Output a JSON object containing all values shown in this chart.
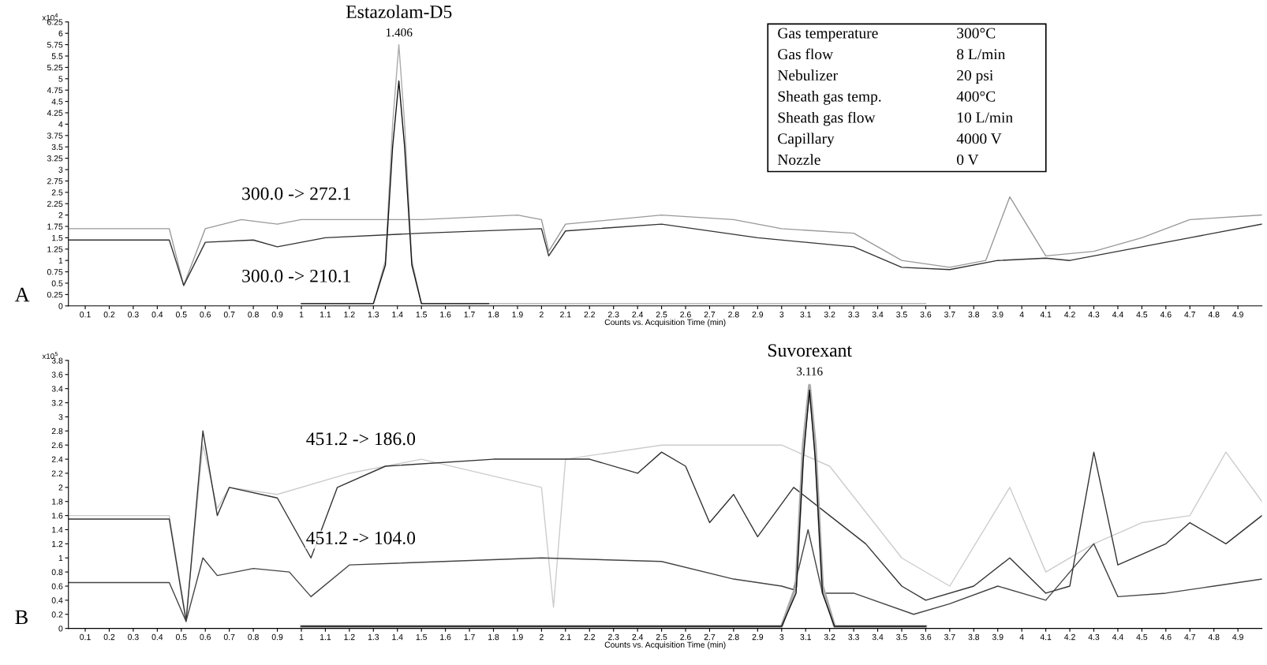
{
  "chart_data": [
    {
      "type": "line",
      "xlabel": "Counts vs. Acquisition Time (min)",
      "ylabel": "x10$^{4}$",
      "xlim": [
        0.03,
        5
      ],
      "ylim": [
        0,
        6.25
      ],
      "xticks": [
        0.1,
        0.2,
        0.3,
        0.4,
        0.5,
        0.6,
        0.7,
        0.8,
        0.9,
        1,
        1.1,
        1.2,
        1.3,
        1.4,
        1.5,
        1.6,
        1.7,
        1.8,
        1.9,
        2,
        2.1,
        2.2,
        2.3,
        2.4,
        2.5,
        2.6,
        2.7,
        2.8,
        2.9,
        3,
        3.1,
        3.2,
        3.3,
        3.4,
        3.5,
        3.6,
        3.7,
        3.8,
        3.9,
        4,
        4.1,
        4.2,
        4.3,
        4.4,
        4.5,
        4.6,
        4.7,
        4.8,
        4.9
      ],
      "yticks": [
        0,
        0.25,
        0.5,
        0.75,
        1,
        1.25,
        1.5,
        1.75,
        2,
        2.25,
        2.5,
        2.75,
        3,
        3.25,
        3.5,
        3.75,
        4,
        4.25,
        4.5,
        4.75,
        5,
        5.25,
        5.5,
        5.75,
        6,
        6.25
      ],
      "grid": false,
      "marker": "none",
      "line_style": "solid",
      "series": [
        {
          "color": "#999999",
          "x": [
            0.03,
            0.45,
            0.51,
            0.6,
            0.75,
            0.9,
            1.0,
            1.5,
            1.9,
            2.0,
            2.03,
            2.1,
            2.5,
            2.8,
            3.0,
            3.3,
            3.5,
            3.7,
            3.85,
            3.95,
            4.1,
            4.3,
            4.5,
            4.7,
            5.0
          ],
          "values": [
            1.7,
            1.7,
            0.45,
            1.7,
            1.9,
            1.8,
            1.9,
            1.9,
            2.0,
            1.9,
            1.2,
            1.8,
            2.0,
            1.9,
            1.7,
            1.6,
            1.0,
            0.85,
            1.0,
            2.4,
            1.1,
            1.2,
            1.5,
            1.9,
            2.0
          ]
        },
        {
          "color": "#333333",
          "x": [
            0.03,
            0.45,
            0.51,
            0.6,
            0.8,
            0.9,
            1.1,
            1.5,
            2.0,
            2.03,
            2.1,
            2.5,
            2.9,
            3.1,
            3.3,
            3.5,
            3.7,
            3.9,
            4.1,
            4.2,
            4.5,
            4.7,
            5.0
          ],
          "values": [
            1.45,
            1.45,
            0.45,
            1.4,
            1.45,
            1.3,
            1.5,
            1.6,
            1.7,
            1.1,
            1.65,
            1.8,
            1.5,
            1.4,
            1.3,
            0.85,
            0.8,
            1.0,
            1.05,
            1.0,
            1.3,
            1.5,
            1.8
          ]
        },
        {
          "color": "#aaaaaa",
          "x": [
            1.0,
            1.3,
            1.35,
            1.38,
            1.406,
            1.43,
            1.46,
            1.5,
            3.6
          ],
          "values": [
            0.05,
            0.05,
            1.0,
            4.0,
            5.75,
            4.0,
            1.0,
            0.05,
            0.05
          ]
        },
        {
          "color": "#111111",
          "x": [
            1.0,
            1.3,
            1.35,
            1.38,
            1.406,
            1.43,
            1.46,
            1.5,
            1.78
          ],
          "values": [
            0.05,
            0.05,
            0.9,
            3.5,
            4.95,
            3.5,
            0.9,
            0.05,
            0.05
          ]
        }
      ],
      "annotations": [
        "Estazolam-D5",
        "1.406",
        "300.0 -> 272.1",
        "300.0 -> 210.1",
        "A",
        "Gas temperature",
        "300°C",
        "Gas flow",
        "8 L/min",
        "Nebulizer",
        "20 psi",
        "Sheath gas temp.",
        "400°C",
        "Sheath gas flow",
        "10 L/min",
        "Capillary",
        "4000 V",
        "Nozzle",
        "0 V"
      ]
    },
    {
      "type": "line",
      "xlabel": "Counts vs. Acquisition Time (min)",
      "ylabel": "x10$^{5}$",
      "xlim": [
        0.03,
        5
      ],
      "ylim": [
        0,
        3.8
      ],
      "xticks": [
        0.1,
        0.2,
        0.3,
        0.4,
        0.5,
        0.6,
        0.7,
        0.8,
        0.9,
        1,
        1.1,
        1.2,
        1.3,
        1.4,
        1.5,
        1.6,
        1.7,
        1.8,
        1.9,
        2,
        2.1,
        2.2,
        2.3,
        2.4,
        2.5,
        2.6,
        2.7,
        2.8,
        2.9,
        3,
        3.1,
        3.2,
        3.3,
        3.4,
        3.5,
        3.6,
        3.7,
        3.8,
        3.9,
        4,
        4.1,
        4.2,
        4.3,
        4.4,
        4.5,
        4.6,
        4.7,
        4.8,
        4.9
      ],
      "yticks": [
        0,
        0.2,
        0.4,
        0.6,
        0.8,
        1,
        1.2,
        1.4,
        1.6,
        1.8,
        2,
        2.2,
        2.4,
        2.6,
        2.8,
        3,
        3.2,
        3.4,
        3.6,
        3.8
      ],
      "grid": false,
      "marker": "none",
      "line_style": "solid",
      "series": [
        {
          "color": "#cccccc",
          "x": [
            0.03,
            0.45,
            0.52,
            0.59,
            0.65,
            0.7,
            0.9,
            1.2,
            1.5,
            2.0,
            2.05,
            2.1,
            2.5,
            3.0,
            3.2,
            3.5,
            3.7,
            3.95,
            4.1,
            4.3,
            4.5,
            4.7,
            4.85,
            5.0
          ],
          "values": [
            1.6,
            1.6,
            0.15,
            2.6,
            1.7,
            2.0,
            1.9,
            2.2,
            2.4,
            2.0,
            0.3,
            2.4,
            2.6,
            2.6,
            2.3,
            1.0,
            0.6,
            2.0,
            0.8,
            1.2,
            1.5,
            1.6,
            2.5,
            1.8
          ]
        },
        {
          "color": "#333333",
          "x": [
            0.03,
            0.45,
            0.52,
            0.59,
            0.65,
            0.7,
            0.9,
            1.04,
            1.15,
            1.35,
            1.8,
            2.2,
            2.4,
            2.5,
            2.6,
            2.7,
            2.8,
            2.9,
            3.05,
            3.2,
            3.35,
            3.5,
            3.6,
            3.8,
            3.95,
            4.1,
            4.2,
            4.3,
            4.4,
            4.6,
            4.7,
            4.85,
            5.0
          ],
          "values": [
            1.55,
            1.55,
            0.1,
            2.8,
            1.6,
            2.0,
            1.85,
            1.0,
            2.0,
            2.3,
            2.4,
            2.4,
            2.2,
            2.5,
            2.3,
            1.5,
            1.9,
            1.3,
            2.0,
            1.6,
            1.2,
            0.6,
            0.4,
            0.6,
            1.0,
            0.5,
            0.6,
            2.5,
            0.9,
            1.2,
            1.5,
            1.2,
            1.6
          ]
        },
        {
          "color": "#444444",
          "x": [
            0.03,
            0.45,
            0.52,
            0.59,
            0.65,
            0.8,
            0.95,
            1.04,
            1.2,
            2.0,
            2.5,
            2.8,
            3.0,
            3.05,
            3.11,
            3.17,
            3.3,
            3.55,
            3.7,
            3.9,
            4.1,
            4.3,
            4.4,
            4.6,
            4.8,
            5.0
          ],
          "values": [
            0.65,
            0.65,
            0.1,
            1.0,
            0.75,
            0.85,
            0.8,
            0.45,
            0.9,
            1.0,
            0.95,
            0.7,
            0.6,
            0.55,
            1.4,
            0.5,
            0.5,
            0.2,
            0.35,
            0.6,
            0.4,
            1.2,
            0.45,
            0.5,
            0.6,
            0.7
          ]
        },
        {
          "color": "#aaaaaa",
          "x": [
            1.0,
            3.0,
            3.06,
            3.09,
            3.116,
            3.14,
            3.17,
            3.22,
            3.6
          ],
          "values": [
            0.03,
            0.03,
            0.6,
            2.6,
            3.45,
            2.6,
            0.6,
            0.03,
            0.03
          ]
        },
        {
          "color": "#111111",
          "x": [
            1.0,
            3.0,
            3.06,
            3.09,
            3.116,
            3.14,
            3.17,
            3.22,
            3.6
          ],
          "values": [
            0.03,
            0.03,
            0.5,
            2.4,
            3.38,
            2.4,
            0.5,
            0.03,
            0.03
          ]
        }
      ],
      "annotations": [
        "Suvorexant",
        "3.116",
        "451.2 -> 186.0",
        "451.2 -> 104.0",
        "B"
      ]
    }
  ]
}
